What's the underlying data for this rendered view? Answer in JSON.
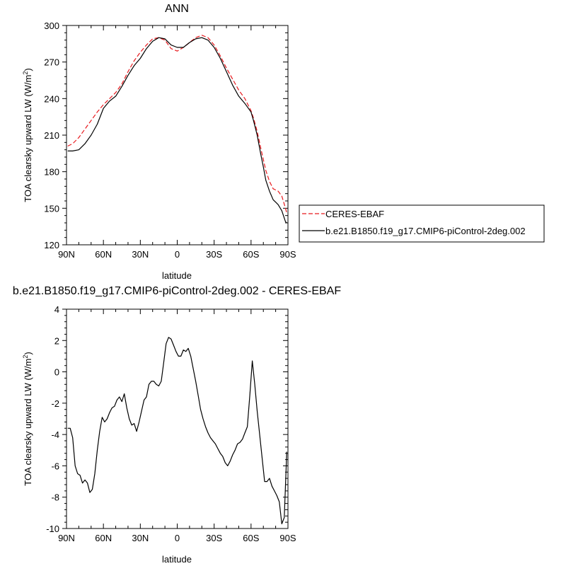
{
  "chart_data": [
    {
      "type": "line",
      "title": "ANN",
      "xlabel": "latitude",
      "ylabel_main": "TOA clearsky upward LW (W/m",
      "ylabel_sup": "2",
      "ylabel_close": ")",
      "xlim": [
        -90,
        90
      ],
      "ylim": [
        120,
        300
      ],
      "xticks": [
        -90,
        -60,
        -30,
        0,
        30,
        60,
        90
      ],
      "xtick_labels": [
        "90N",
        "60N",
        "30N",
        "0",
        "30S",
        "60S",
        "90S"
      ],
      "yticks": [
        120,
        150,
        180,
        210,
        240,
        270,
        300
      ],
      "ytick_labels": [
        "120",
        "150",
        "180",
        "210",
        "240",
        "270",
        "300"
      ],
      "grid": false,
      "legend_position": "right",
      "series": [
        {
          "name": "CERES-EBAF",
          "color": "#e8191d",
          "dash": "dashed",
          "x": [
            -89,
            -85,
            -80,
            -75,
            -70,
            -65,
            -60,
            -55,
            -50,
            -45,
            -40,
            -35,
            -30,
            -25,
            -20,
            -15,
            -10,
            -5,
            0,
            5,
            10,
            15,
            20,
            25,
            30,
            35,
            40,
            45,
            50,
            55,
            60,
            62,
            65,
            68,
            70,
            72,
            75,
            78,
            80,
            82,
            85,
            88,
            89
          ],
          "y": [
            201,
            203,
            208,
            215,
            222,
            229,
            235,
            240,
            245,
            252,
            262,
            271,
            278,
            284,
            289,
            290,
            288,
            281,
            279,
            282,
            286,
            290,
            292,
            290,
            284,
            275,
            265,
            256,
            247,
            240,
            230,
            224,
            213,
            199,
            190,
            181,
            172,
            166,
            165,
            164,
            160,
            150,
            146
          ]
        },
        {
          "name": "b.e21.B1850.f19_g17.CMIP6-piControl-2deg.002",
          "color": "#000000",
          "dash": "solid",
          "x": [
            -89,
            -85,
            -80,
            -75,
            -70,
            -65,
            -60,
            -55,
            -50,
            -45,
            -40,
            -35,
            -30,
            -25,
            -20,
            -15,
            -10,
            -5,
            0,
            5,
            10,
            15,
            20,
            25,
            30,
            35,
            40,
            45,
            50,
            55,
            60,
            62,
            65,
            68,
            70,
            72,
            75,
            78,
            80,
            82,
            85,
            88,
            89
          ],
          "y": [
            197,
            197,
            198,
            203,
            210,
            219,
            232,
            238,
            242,
            250,
            259,
            267,
            273,
            281,
            287,
            290,
            289,
            284,
            282,
            282,
            286,
            289,
            290,
            288,
            282,
            273,
            262,
            251,
            242,
            236,
            229,
            222,
            210,
            194,
            184,
            173,
            164,
            157,
            155,
            153,
            148,
            139,
            138
          ]
        }
      ]
    },
    {
      "type": "line",
      "title": "b.e21.B1850.f19_g17.CMIP6-piControl-2deg.002 - CERES-EBAF",
      "xlabel": "latitude",
      "ylabel_main": "TOA clearsky upward LW (W/m",
      "ylabel_sup": "2",
      "ylabel_close": ")",
      "xlim": [
        -90,
        90
      ],
      "ylim": [
        -10,
        4
      ],
      "xticks": [
        -90,
        -60,
        -30,
        0,
        30,
        60,
        90
      ],
      "xtick_labels": [
        "90N",
        "60N",
        "30N",
        "0",
        "30S",
        "60S",
        "90S"
      ],
      "yticks": [
        -10,
        -8,
        -6,
        -4,
        -2,
        0,
        2,
        4
      ],
      "ytick_labels": [
        "-10",
        "-8",
        "-6",
        "-4",
        "-2",
        "0",
        "2",
        "4"
      ],
      "grid": false,
      "series": [
        {
          "color": "#000000",
          "dash": "solid",
          "x": [
            -89,
            -87,
            -85,
            -83,
            -81,
            -79,
            -77,
            -75,
            -73,
            -71,
            -69,
            -67,
            -65,
            -63,
            -61,
            -59,
            -57,
            -55,
            -53,
            -51,
            -49,
            -47,
            -45,
            -43,
            -41,
            -39,
            -37,
            -35,
            -33,
            -31,
            -29,
            -27,
            -25,
            -23,
            -21,
            -19,
            -17,
            -15,
            -13,
            -11,
            -9,
            -7,
            -5,
            -3,
            -1,
            1,
            3,
            5,
            7,
            9,
            11,
            13,
            15,
            17,
            19,
            21,
            23,
            25,
            27,
            29,
            31,
            33,
            35,
            37,
            39,
            41,
            43,
            45,
            47,
            49,
            51,
            53,
            55,
            57,
            59,
            61,
            63,
            65,
            67,
            69,
            71,
            73,
            75,
            77,
            79,
            81,
            83,
            85,
            87,
            89
          ],
          "y": [
            -3.6,
            -3.6,
            -4.2,
            -6.0,
            -6.5,
            -6.6,
            -7.1,
            -6.9,
            -7.1,
            -7.7,
            -7.5,
            -6.5,
            -5.0,
            -3.8,
            -2.9,
            -3.2,
            -3.0,
            -2.6,
            -2.3,
            -2.2,
            -1.8,
            -1.6,
            -1.9,
            -1.4,
            -2.3,
            -3.0,
            -3.4,
            -3.3,
            -3.8,
            -3.2,
            -2.5,
            -1.8,
            -1.6,
            -0.8,
            -0.6,
            -0.6,
            -0.8,
            -0.9,
            -0.6,
            0.6,
            1.8,
            2.2,
            2.1,
            1.7,
            1.3,
            1.0,
            1.0,
            1.4,
            1.3,
            1.5,
            1.0,
            0.2,
            -0.6,
            -1.5,
            -2.4,
            -3.0,
            -3.5,
            -3.9,
            -4.2,
            -4.4,
            -4.6,
            -4.9,
            -5.2,
            -5.4,
            -5.8,
            -6.0,
            -5.7,
            -5.3,
            -5.0,
            -4.6,
            -4.5,
            -4.3,
            -3.9,
            -3.5,
            -1.5,
            0.7,
            -0.8,
            -2.5,
            -4.0,
            -5.5,
            -7.0,
            -7.0,
            -6.8,
            -7.3,
            -7.6,
            -7.9,
            -8.3,
            -9.7,
            -9.3,
            -5.1
          ]
        }
      ]
    }
  ]
}
